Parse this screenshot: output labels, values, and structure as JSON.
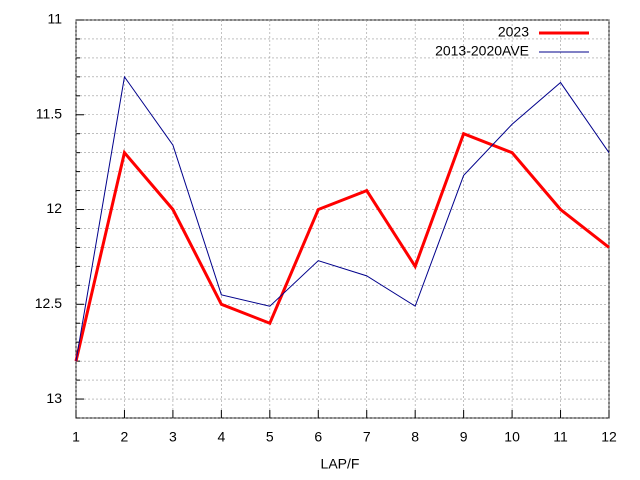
{
  "chart_data": {
    "type": "line",
    "x_label": "LAP/F",
    "x": [
      1,
      2,
      3,
      4,
      5,
      6,
      7,
      8,
      9,
      10,
      11,
      12
    ],
    "series": [
      {
        "name": "2023",
        "color": "#ff0000",
        "width": 3,
        "values": [
          12.8,
          11.7,
          12.0,
          12.5,
          12.6,
          12.0,
          11.9,
          12.3,
          11.6,
          11.7,
          12.0,
          12.2
        ]
      },
      {
        "name": "2013-2020AVE",
        "color": "#00008b",
        "width": 1,
        "values": [
          12.8,
          11.3,
          11.66,
          12.45,
          12.51,
          12.27,
          12.35,
          12.51,
          11.82,
          11.55,
          11.33,
          11.7
        ]
      }
    ],
    "xlim": [
      1,
      12
    ],
    "xticks": [
      1,
      2,
      3,
      4,
      5,
      6,
      7,
      8,
      9,
      10,
      11,
      12
    ],
    "ylim": [
      13.1,
      11
    ],
    "yticks": [
      11,
      11.5,
      12,
      12.5,
      13
    ],
    "yminorticks": [
      11.1,
      11.2,
      11.3,
      11.4,
      11.6,
      11.7,
      11.8,
      11.9,
      12.1,
      12.2,
      12.3,
      12.4,
      12.6,
      12.7,
      12.8,
      12.9,
      13.1
    ],
    "grid": true,
    "legend": "top-right"
  }
}
